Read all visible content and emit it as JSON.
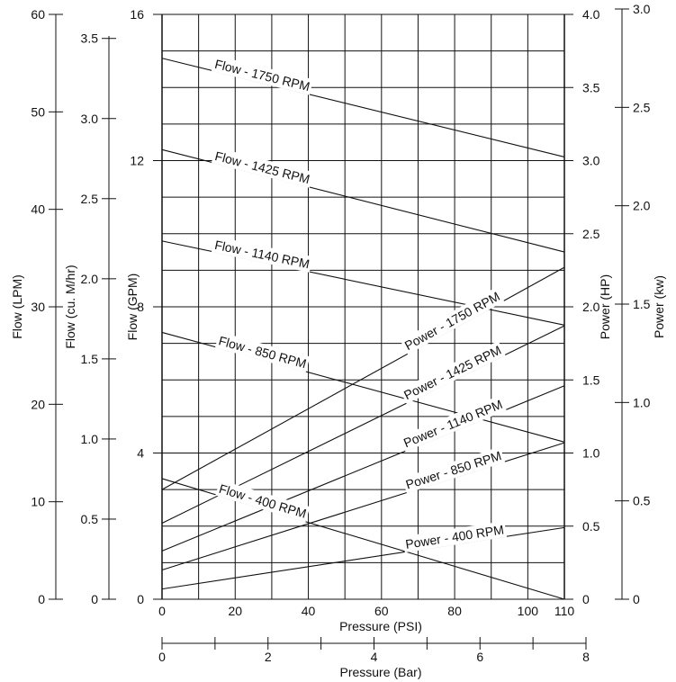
{
  "chart_data": {
    "type": "line",
    "x": {
      "label": "Pressure (PSI)",
      "range": [
        0,
        110
      ],
      "ticks": [
        0,
        20,
        40,
        60,
        80,
        100,
        110
      ],
      "grid": true,
      "gridlines": [
        0,
        10,
        20,
        30,
        40,
        50,
        60,
        70,
        80,
        90,
        100,
        110
      ]
    },
    "x_secondary": {
      "label": "Pressure (Bar)",
      "range": [
        0,
        8
      ],
      "ticks": [
        0,
        2,
        4,
        6,
        8
      ],
      "minor_ticks": [
        1,
        3,
        5,
        7
      ]
    },
    "y_flow_gpm": {
      "label": "Flow (GPM)",
      "range": [
        0,
        16
      ],
      "ticks": [
        0,
        4,
        8,
        12,
        16
      ],
      "grid": true
    },
    "y_flow_lpm": {
      "label": "Flow (LPM)",
      "range": [
        0,
        60
      ],
      "ticks": [
        0,
        10,
        20,
        30,
        40,
        50,
        60
      ]
    },
    "y_flow_m3hr": {
      "label": "Flow (cu. M/hr)",
      "range": [
        0,
        3.65
      ],
      "ticks": [
        "0",
        "0.5",
        "1.0",
        "1.5",
        "2.0",
        "2.5",
        "3.0",
        "3.5"
      ]
    },
    "y_power_hp": {
      "label": "Power (HP)",
      "range": [
        0,
        4.0
      ],
      "ticks": [
        "0",
        "0.5",
        "1.0",
        "1.5",
        "2.0",
        "2.5",
        "3.0",
        "3.5",
        "4.0"
      ]
    },
    "y_power_kw": {
      "label": "Power (kw)",
      "range": [
        0,
        3.0
      ],
      "ticks": [
        "0",
        "0.5",
        "1.0",
        "1.5",
        "2.0",
        "2.5",
        "3.0"
      ]
    },
    "series": [
      {
        "name": "Flow - 1750 RPM",
        "axis": "flow_gpm",
        "x": [
          0,
          110
        ],
        "y": [
          14.8,
          12.1
        ]
      },
      {
        "name": "Flow - 1425 RPM",
        "axis": "flow_gpm",
        "x": [
          0,
          110
        ],
        "y": [
          12.3,
          9.5
        ]
      },
      {
        "name": "Flow - 1140 RPM",
        "axis": "flow_gpm",
        "x": [
          0,
          110
        ],
        "y": [
          9.8,
          7.5
        ]
      },
      {
        "name": "Flow - 850 RPM",
        "axis": "flow_gpm",
        "x": [
          0,
          110
        ],
        "y": [
          7.3,
          4.3
        ]
      },
      {
        "name": "Flow - 400 RPM",
        "axis": "flow_gpm",
        "x": [
          0,
          110
        ],
        "y": [
          3.3,
          0.0
        ]
      },
      {
        "name": "Power - 1750 RPM",
        "axis": "power_hp",
        "x": [
          0,
          110
        ],
        "y": [
          0.75,
          2.27
        ]
      },
      {
        "name": "Power - 1425 RPM",
        "axis": "power_hp",
        "x": [
          0,
          110
        ],
        "y": [
          0.52,
          1.87
        ]
      },
      {
        "name": "Power - 1140 RPM",
        "axis": "power_hp",
        "x": [
          0,
          110
        ],
        "y": [
          0.33,
          1.46
        ]
      },
      {
        "name": "Power - 850 RPM",
        "axis": "power_hp",
        "x": [
          0,
          110
        ],
        "y": [
          0.2,
          1.07
        ]
      },
      {
        "name": "Power - 400 RPM",
        "axis": "power_hp",
        "x": [
          0,
          110
        ],
        "y": [
          0.07,
          0.49
        ]
      }
    ]
  }
}
